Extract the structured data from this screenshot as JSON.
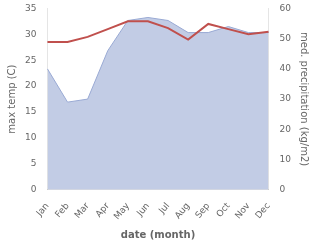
{
  "chart_data": {
    "type": "line",
    "xlabel": "date (month)",
    "ylabel": "max temp (C)",
    "y2label": "med. precipitation (kg/m2)",
    "categories": [
      "Jan",
      "Feb",
      "Mar",
      "Apr",
      "May",
      "Jun",
      "Jul",
      "Aug",
      "Sep",
      "Oct",
      "Nov",
      "Dec"
    ],
    "series": [
      {
        "type": "line",
        "color": "#c0504d",
        "values": [
          28.5,
          28.5,
          29.5,
          31.0,
          32.5,
          32.5,
          31.2,
          29.0,
          32.0,
          31.0,
          30.0,
          30.5
        ]
      },
      {
        "type": "area",
        "axis": "y2",
        "color": "#9aaad4",
        "values": [
          40,
          29,
          30,
          46,
          56,
          57,
          56,
          52,
          52,
          54,
          52,
          52
        ]
      }
    ],
    "ylim": [
      0,
      35
    ],
    "yticks": [
      0,
      5,
      10,
      15,
      20,
      25,
      30,
      35
    ],
    "y2lim": [
      0,
      60
    ],
    "y2ticks": [
      0,
      10,
      20,
      30,
      40,
      50,
      60
    ],
    "grid": false
  }
}
